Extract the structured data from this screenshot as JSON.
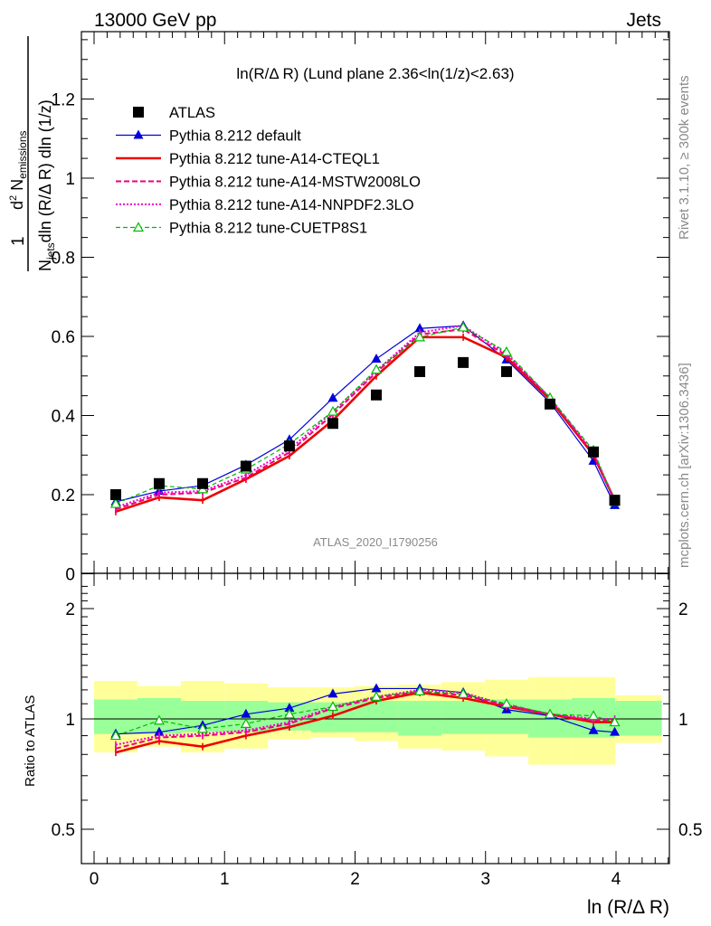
{
  "header": {
    "left": "13000 GeV pp",
    "right": "Jets"
  },
  "side_labels": {
    "rivet": "Rivet 3.1.10, ≥ 300k events",
    "mcplots": "mcplots.cern.ch [arXiv:1306.3436]"
  },
  "chart_data": [
    {
      "type": "line",
      "title": "ln(R/Δ R) (Lund plane 2.36<ln(1/z)<2.63)",
      "watermark": "ATLAS_2020_I1790256",
      "xlabel": "ln (R/Δ R)",
      "ylabel": "1/N_jets d²N_emissions / dln(R/Δ R) dln(1/z)",
      "xlim": [
        -0.1,
        4.41
      ],
      "ylim": [
        0,
        1.4
      ],
      "yticks": [
        0,
        0.2,
        0.4,
        0.6,
        0.8,
        1,
        1.2
      ],
      "ytick_labels": [
        "0",
        "0.2",
        "0.4",
        "0.6",
        "0.8",
        "1",
        "1.2"
      ],
      "xticks": [
        0,
        1,
        2,
        3,
        4
      ],
      "xtick_labels": [
        "0",
        "1",
        "2",
        "3",
        "4"
      ],
      "legend_position": "top-left",
      "x": [
        0.166,
        0.499,
        0.832,
        1.164,
        1.497,
        1.83,
        2.163,
        2.496,
        2.829,
        3.161,
        3.494,
        3.827,
        3.99
      ],
      "series": [
        {
          "name": "ATLAS",
          "style": "data",
          "color": "#000000",
          "values": [
            0.2,
            0.228,
            0.228,
            0.272,
            0.323,
            0.38,
            0.452,
            0.511,
            0.534,
            0.511,
            0.429,
            0.308,
            0.186
          ]
        },
        {
          "name": "Pythia 8.212 default",
          "style": "solid-triangle",
          "color": "#0000dd",
          "values": [
            0.182,
            0.209,
            0.223,
            0.275,
            0.339,
            0.444,
            0.543,
            0.62,
            0.627,
            0.541,
            0.433,
            0.285,
            0.173
          ]
        },
        {
          "name": "Pythia 8.212 tune-A14-CTEQL1",
          "style": "solid-thick",
          "color": "#ee0000",
          "values": [
            0.157,
            0.193,
            0.186,
            0.239,
            0.298,
            0.388,
            0.5,
            0.598,
            0.598,
            0.547,
            0.44,
            0.3,
            0.186
          ]
        },
        {
          "name": "Pythia 8.212 tune-A14-MSTW2008LO",
          "style": "dashed",
          "color": "#ee0077",
          "values": [
            0.163,
            0.2,
            0.205,
            0.243,
            0.307,
            0.403,
            0.509,
            0.605,
            0.618,
            0.552,
            0.445,
            0.303,
            0.182
          ]
        },
        {
          "name": "Pythia 8.212 tune-A14-NNPDF2.3LO",
          "style": "dotted",
          "color": "#ee00cc",
          "values": [
            0.168,
            0.205,
            0.209,
            0.25,
            0.314,
            0.41,
            0.513,
            0.61,
            0.627,
            0.556,
            0.445,
            0.307,
            0.186
          ]
        },
        {
          "name": "Pythia 8.212 tune-CUETP8S1",
          "style": "dashed-open-triangle",
          "color": "#00bb00",
          "values": [
            0.177,
            0.223,
            0.214,
            0.264,
            0.328,
            0.41,
            0.516,
            0.598,
            0.623,
            0.561,
            0.445,
            0.312,
            0.182
          ]
        }
      ]
    },
    {
      "type": "line",
      "ylabel": "Ratio to ATLAS",
      "yscale": "log",
      "ylim": [
        0.4,
        2.4
      ],
      "yticks": [
        0.5,
        1,
        2
      ],
      "ytick_labels": [
        "0.5",
        "1",
        "2"
      ],
      "x": [
        0.166,
        0.499,
        0.832,
        1.164,
        1.497,
        1.83,
        2.163,
        2.496,
        2.829,
        3.161,
        3.494,
        3.827,
        3.99
      ],
      "bin_edges": [
        0.0,
        0.333,
        0.666,
        0.999,
        1.331,
        1.664,
        1.997,
        2.33,
        2.663,
        2.995,
        3.328,
        3.661,
        3.994,
        4.35
      ],
      "band_green": {
        "lo": [
          0.91,
          0.91,
          0.92,
          0.92,
          0.93,
          0.92,
          0.92,
          0.9,
          0.91,
          0.91,
          0.89,
          0.89,
          0.9
        ],
        "hi": [
          1.13,
          1.14,
          1.12,
          1.12,
          1.11,
          1.11,
          1.12,
          1.12,
          1.12,
          1.13,
          1.13,
          1.14,
          1.12
        ]
      },
      "band_yellow": {
        "lo": [
          0.81,
          0.84,
          0.81,
          0.83,
          0.88,
          0.89,
          0.87,
          0.83,
          0.82,
          0.79,
          0.75,
          0.75,
          0.86
        ],
        "hi": [
          1.27,
          1.23,
          1.27,
          1.25,
          1.22,
          1.22,
          1.23,
          1.24,
          1.26,
          1.28,
          1.3,
          1.3,
          1.16
        ]
      },
      "series": [
        {
          "name": "Pythia 8.212 default",
          "color": "#0000dd",
          "values": [
            0.91,
            0.92,
            0.96,
            1.03,
            1.07,
            1.17,
            1.21,
            1.21,
            1.18,
            1.06,
            1.02,
            0.93,
            0.92
          ]
        },
        {
          "name": "Pythia 8.212 tune-A14-CTEQL1",
          "color": "#ee0000",
          "values": [
            0.81,
            0.87,
            0.84,
            0.9,
            0.95,
            1.02,
            1.12,
            1.18,
            1.14,
            1.08,
            1.03,
            0.98,
            0.98
          ]
        },
        {
          "name": "Pythia 8.212 tune-A14-MSTW2008LO",
          "color": "#ee0077",
          "values": [
            0.83,
            0.89,
            0.9,
            0.92,
            0.97,
            1.07,
            1.14,
            1.19,
            1.16,
            1.09,
            1.03,
            0.99,
            0.99
          ]
        },
        {
          "name": "Pythia 8.212 tune-A14-NNPDF2.3LO",
          "color": "#ee00cc",
          "values": [
            0.85,
            0.9,
            0.91,
            0.93,
            0.98,
            1.08,
            1.15,
            1.2,
            1.18,
            1.09,
            1.03,
            1.0,
            1.0
          ]
        },
        {
          "name": "Pythia 8.212 tune-CUETP8S1",
          "color": "#00bb00",
          "values": [
            0.9,
            0.99,
            0.94,
            0.97,
            1.03,
            1.08,
            1.15,
            1.19,
            1.17,
            1.1,
            1.03,
            1.02,
            0.98
          ]
        }
      ]
    }
  ]
}
